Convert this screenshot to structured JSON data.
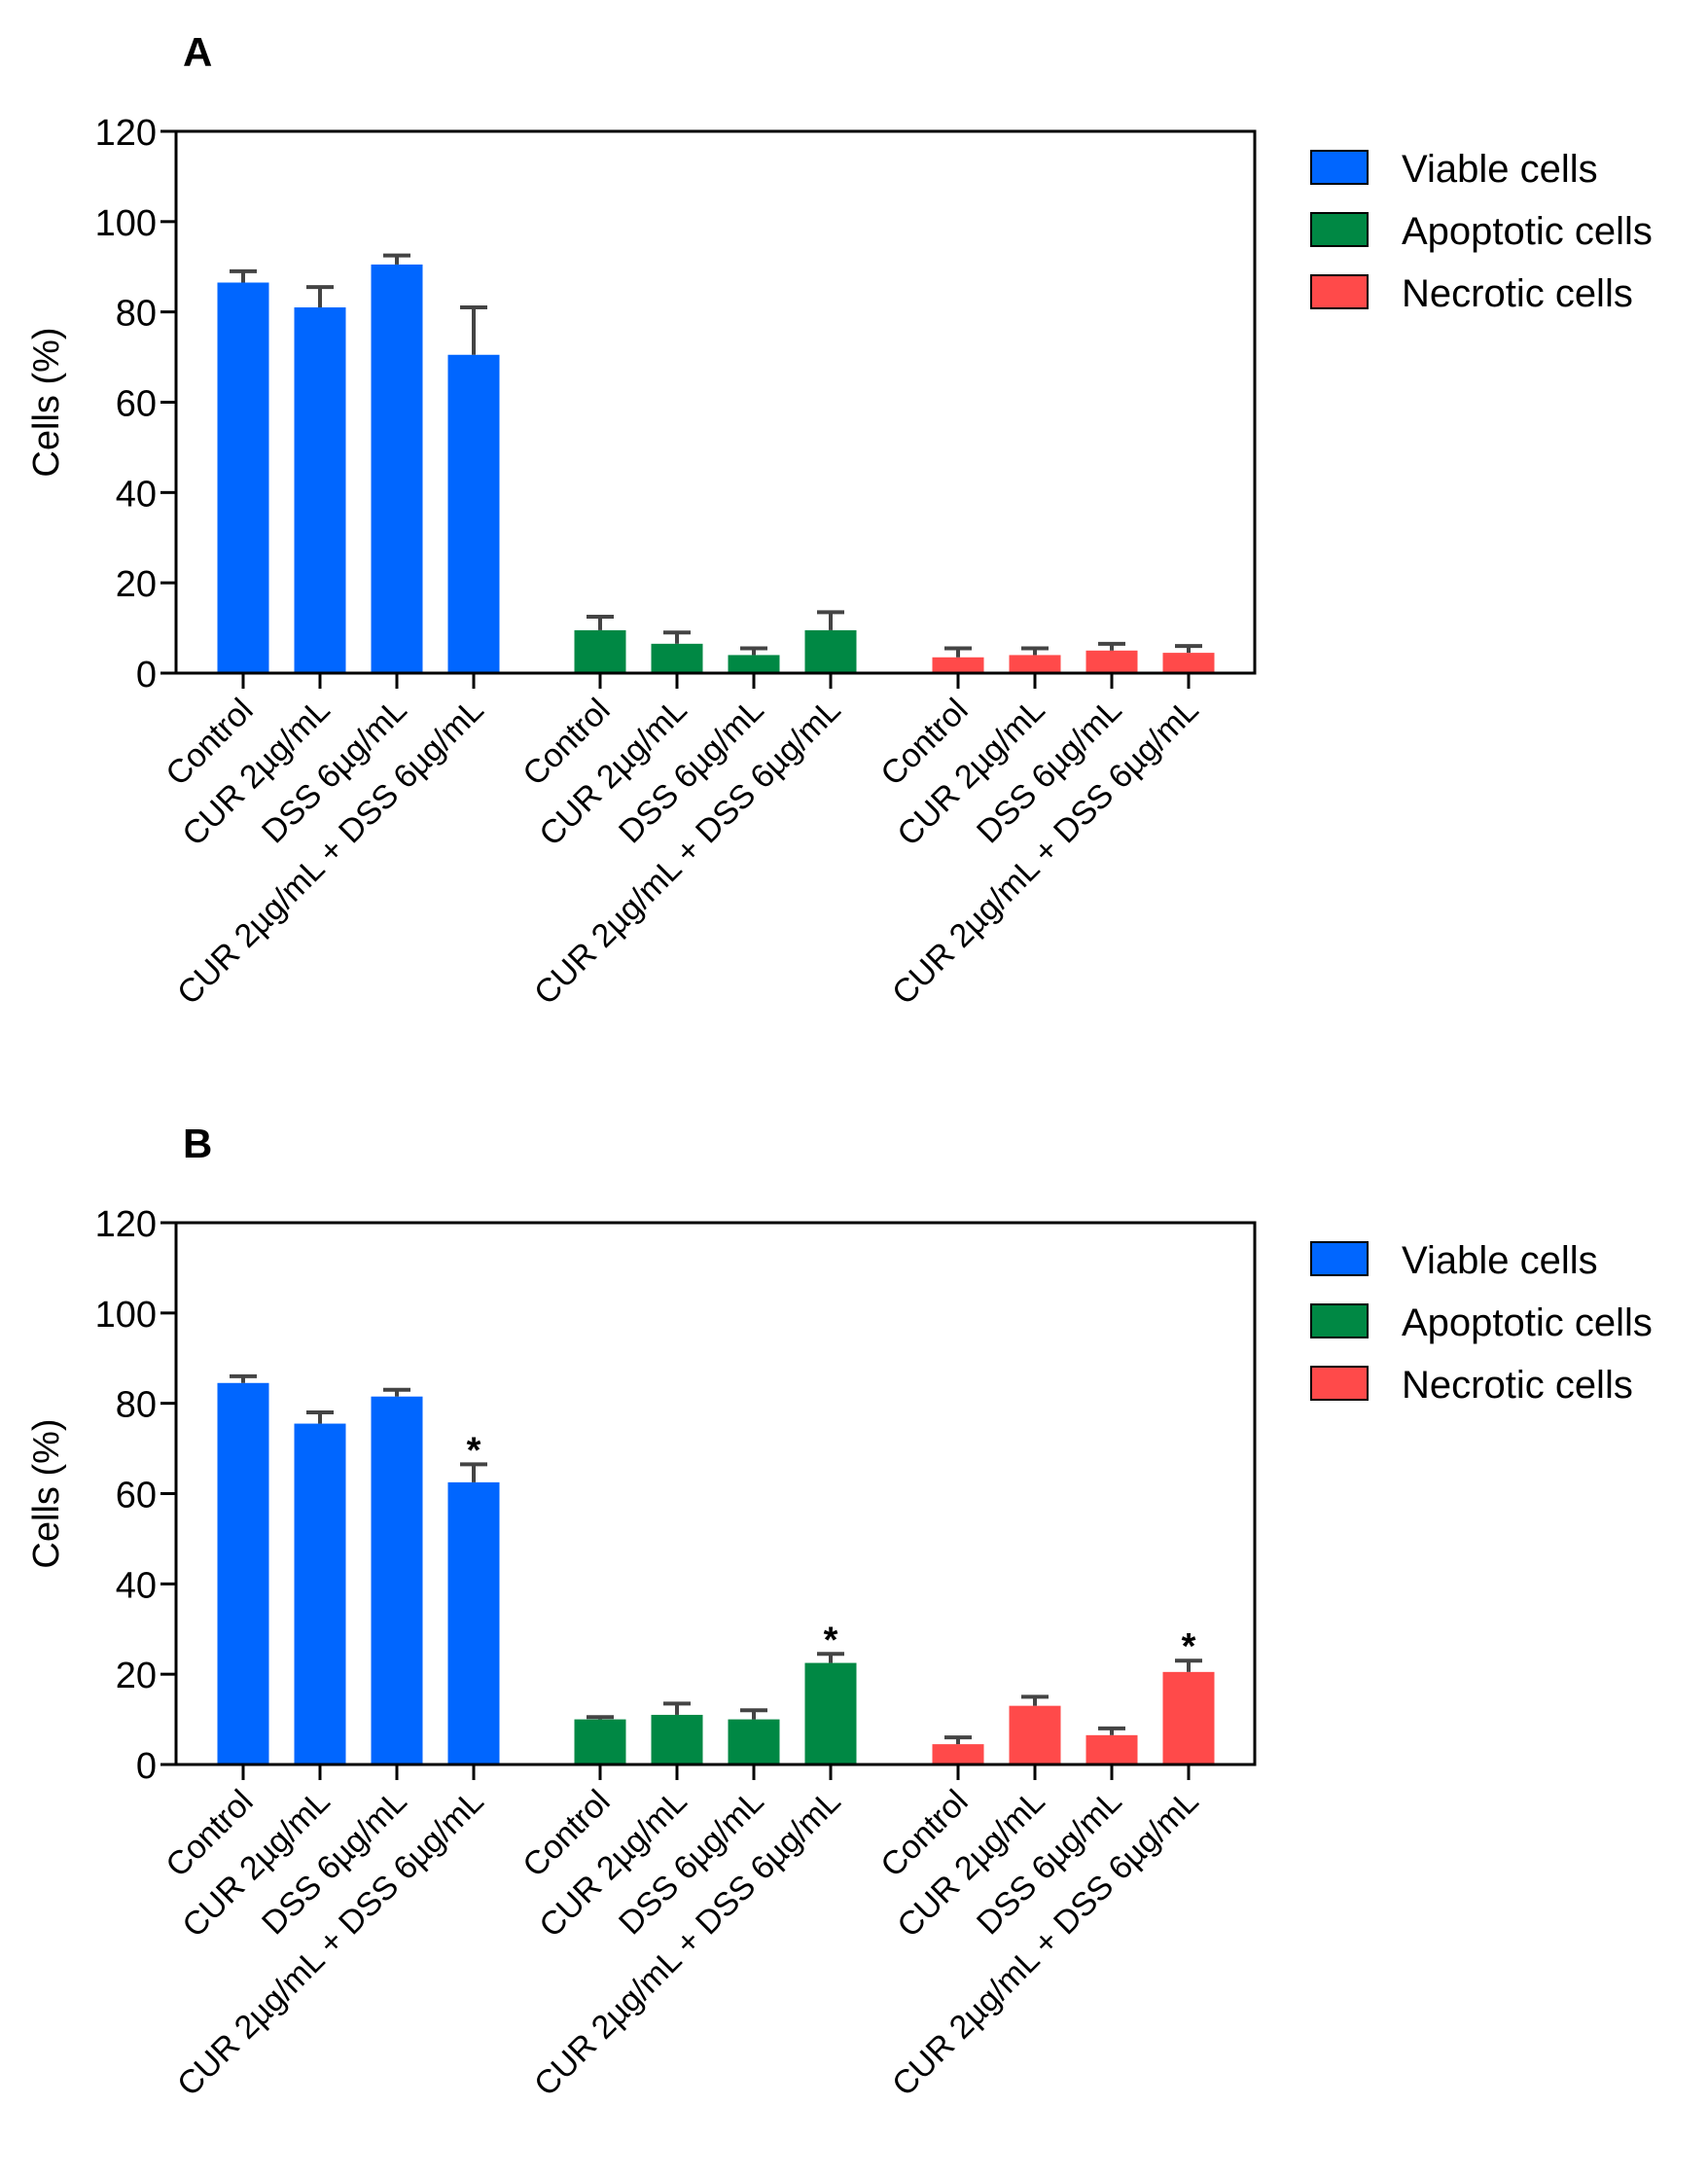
{
  "chart_data": [
    {
      "type": "bar",
      "panel_label": "A",
      "ylabel": "Cells (%)",
      "ylim": [
        0,
        120
      ],
      "yticks": [
        "0",
        "20",
        "40",
        "60",
        "80",
        "100",
        "120"
      ],
      "grid": false,
      "legend_position": "right",
      "categories": [
        "Control",
        "CUR 2µg/mL",
        "DSS 6µg/mL",
        "CUR 2µg/mL + DSS 6µg/mL"
      ],
      "series": [
        {
          "name": "Viable cells",
          "color": "#0066ff",
          "values": [
            86.5,
            81,
            90.5,
            70.5
          ],
          "errors": [
            2.5,
            4.5,
            2,
            10.5
          ],
          "annotations": [
            "",
            "",
            "",
            ""
          ]
        },
        {
          "name": "Apoptotic cells",
          "color": "#008844",
          "values": [
            9.5,
            6.5,
            4,
            9.5
          ],
          "errors": [
            3,
            2.5,
            1.5,
            4
          ],
          "annotations": [
            "",
            "",
            "",
            ""
          ]
        },
        {
          "name": "Necrotic cells",
          "color": "#ff4a4a",
          "values": [
            3.5,
            4,
            5,
            4.5
          ],
          "errors": [
            2,
            1.5,
            1.5,
            1.5
          ],
          "annotations": [
            "",
            "",
            "",
            ""
          ]
        }
      ]
    },
    {
      "type": "bar",
      "panel_label": "B",
      "ylabel": "Cells (%)",
      "ylim": [
        0,
        120
      ],
      "yticks": [
        "0",
        "20",
        "40",
        "60",
        "80",
        "100",
        "120"
      ],
      "grid": false,
      "legend_position": "right",
      "categories": [
        "Control",
        "CUR 2µg/mL",
        "DSS 6µg/mL",
        "CUR 2µg/mL + DSS 6µg/mL"
      ],
      "series": [
        {
          "name": "Viable cells",
          "color": "#0066ff",
          "values": [
            84.5,
            75.5,
            81.5,
            62.5
          ],
          "errors": [
            1.5,
            2.5,
            1.5,
            4
          ],
          "annotations": [
            "",
            "",
            "",
            "*"
          ]
        },
        {
          "name": "Apoptotic cells",
          "color": "#008844",
          "values": [
            10,
            11,
            10,
            22.5
          ],
          "errors": [
            0.5,
            2.5,
            2,
            2
          ],
          "annotations": [
            "",
            "",
            "",
            "*"
          ]
        },
        {
          "name": "Necrotic cells",
          "color": "#ff4a4a",
          "values": [
            4.5,
            13,
            6.5,
            20.5
          ],
          "errors": [
            1.5,
            2,
            1.5,
            2.5
          ],
          "annotations": [
            "",
            "",
            "",
            "*"
          ]
        }
      ]
    }
  ]
}
